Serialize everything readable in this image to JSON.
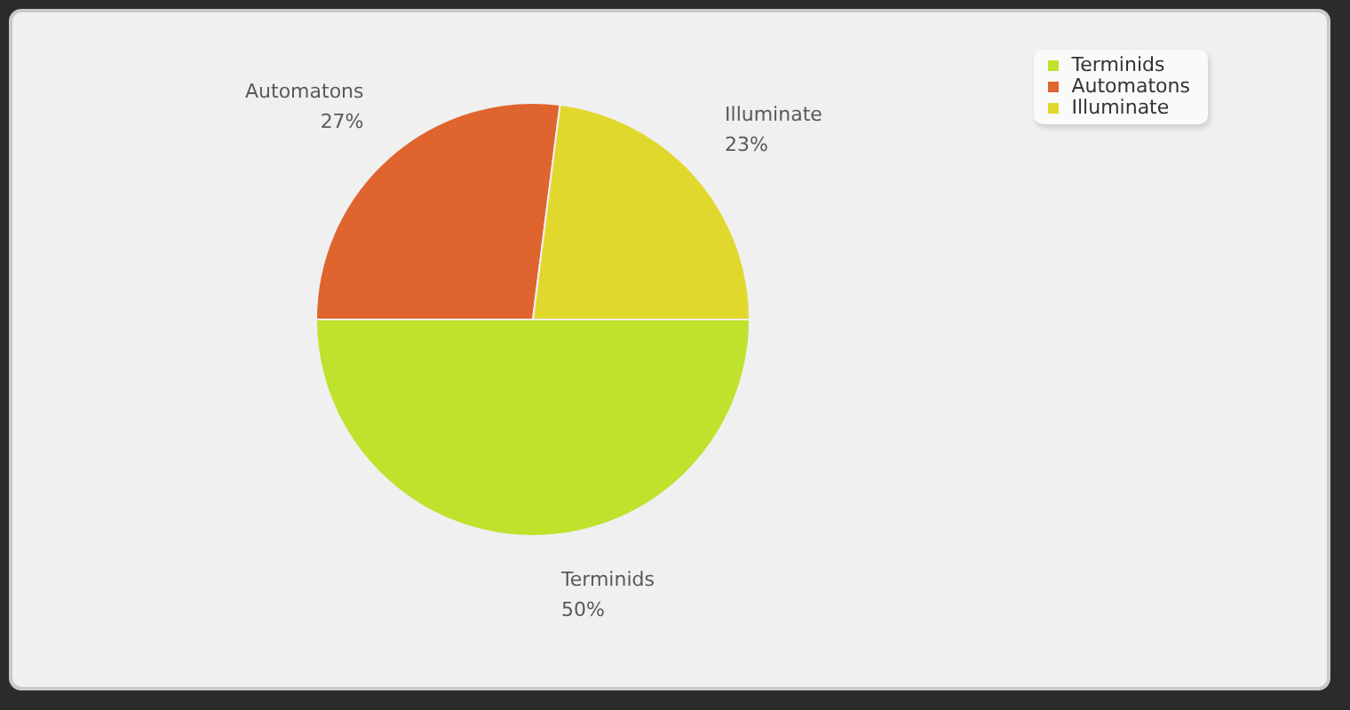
{
  "chart_data": {
    "type": "pie",
    "categories": [
      "Terminids",
      "Automatons",
      "Illuminate"
    ],
    "values": [
      50,
      27,
      23
    ],
    "colors": [
      "#bfe22c",
      "#e0642e",
      "#e1d82e"
    ],
    "value_labels": [
      "50%",
      "27%",
      "23%"
    ],
    "legend": "top right"
  }
}
